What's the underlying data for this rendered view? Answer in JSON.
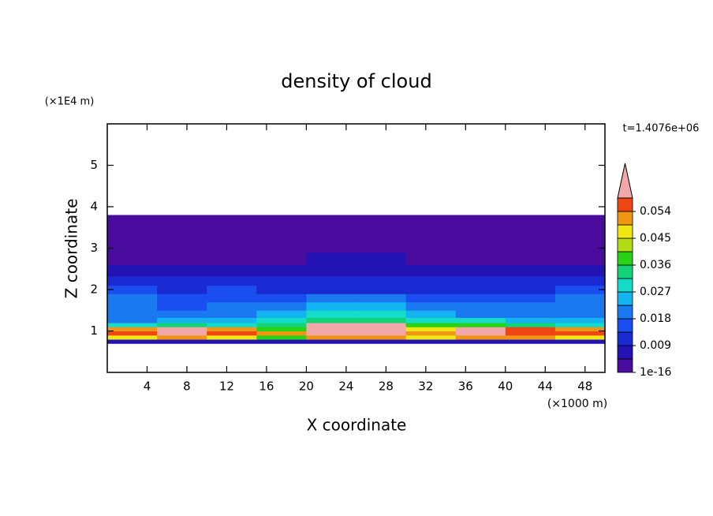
{
  "chart_data": {
    "type": "contour",
    "title": "density of cloud",
    "xlabel": "X coordinate",
    "ylabel": "Z coordinate",
    "x_unit": "(×1000 m)",
    "y_unit": "(×1E4 m)",
    "annotation": "t=1.4076e+06",
    "xlim": [
      0,
      50
    ],
    "xticks": [
      4,
      8,
      12,
      16,
      20,
      24,
      28,
      32,
      36,
      40,
      44,
      48
    ],
    "ylim": [
      0,
      6
    ],
    "yticks": [
      1,
      2,
      3,
      4,
      5
    ],
    "x": [
      2.5,
      7.5,
      12.5,
      17.5,
      22.5,
      27.5,
      32.5,
      37.5,
      42.5,
      47.5
    ],
    "z": [
      0.75,
      0.85,
      0.95,
      1.05,
      1.15,
      1.25,
      1.4,
      1.6,
      1.8,
      2.0,
      2.2,
      2.45,
      2.75,
      3.05,
      3.35,
      3.65
    ],
    "values": [
      [
        0.006,
        0.006,
        0.006,
        0.006,
        0.006,
        0.006,
        0.006,
        0.006,
        0.006,
        0.006
      ],
      [
        0.045,
        0.05,
        0.048,
        0.04,
        0.05,
        0.05,
        0.045,
        0.05,
        0.05,
        0.048
      ],
      [
        0.058,
        0.062,
        0.055,
        0.05,
        0.065,
        0.065,
        0.05,
        0.06,
        0.058,
        0.055
      ],
      [
        0.052,
        0.06,
        0.05,
        0.04,
        0.065,
        0.065,
        0.045,
        0.06,
        0.055,
        0.05
      ],
      [
        0.03,
        0.035,
        0.03,
        0.035,
        0.062,
        0.06,
        0.04,
        0.04,
        0.035,
        0.03
      ],
      [
        0.022,
        0.025,
        0.025,
        0.03,
        0.035,
        0.035,
        0.03,
        0.028,
        0.025,
        0.025
      ],
      [
        0.02,
        0.018,
        0.02,
        0.025,
        0.03,
        0.03,
        0.025,
        0.022,
        0.02,
        0.022
      ],
      [
        0.02,
        0.016,
        0.018,
        0.02,
        0.024,
        0.025,
        0.022,
        0.02,
        0.018,
        0.02
      ],
      [
        0.018,
        0.014,
        0.016,
        0.016,
        0.018,
        0.018,
        0.016,
        0.016,
        0.015,
        0.018
      ],
      [
        0.015,
        0.012,
        0.014,
        0.012,
        0.013,
        0.013,
        0.012,
        0.012,
        0.012,
        0.014
      ],
      [
        0.012,
        0.01,
        0.011,
        0.01,
        0.01,
        0.01,
        0.01,
        0.01,
        0.009,
        0.011
      ],
      [
        0.006,
        0.005,
        0.006,
        0.006,
        0.007,
        0.007,
        0.006,
        0.006,
        0.005,
        0.006
      ],
      [
        0.004,
        0.003,
        0.004,
        0.004,
        0.005,
        0.005,
        0.004,
        0.004,
        0.003,
        0.004
      ],
      [
        0.002,
        0.002,
        0.002,
        0.002,
        0.002,
        0.002,
        0.002,
        0.002,
        0.002,
        0.002
      ],
      [
        0.001,
        0.001,
        0.001,
        0.001,
        0.001,
        0.001,
        0.001,
        0.001,
        0.001,
        0.001
      ],
      [
        0.0005,
        0.0005,
        0.0005,
        0.0005,
        0.0005,
        0.0005,
        0.0005,
        0.0005,
        0.0005,
        0.0005
      ]
    ],
    "colorbar": {
      "levels": [
        1e-16,
        0.0045,
        0.009,
        0.0135,
        0.018,
        0.0225,
        0.027,
        0.0315,
        0.036,
        0.0405,
        0.045,
        0.0495,
        0.054,
        0.0585
      ],
      "colors": [
        "#4a0c9e",
        "#2312b4",
        "#1a2ad2",
        "#1a4ef0",
        "#1a78f0",
        "#14b4f0",
        "#14dcc8",
        "#14d278",
        "#28d214",
        "#b4dc14",
        "#f0e614",
        "#f09614",
        "#f04614"
      ],
      "over_color": "#f2a8a8",
      "ticks": [
        1e-16,
        0.009,
        0.018,
        0.027,
        0.036,
        0.045,
        0.054
      ]
    }
  }
}
